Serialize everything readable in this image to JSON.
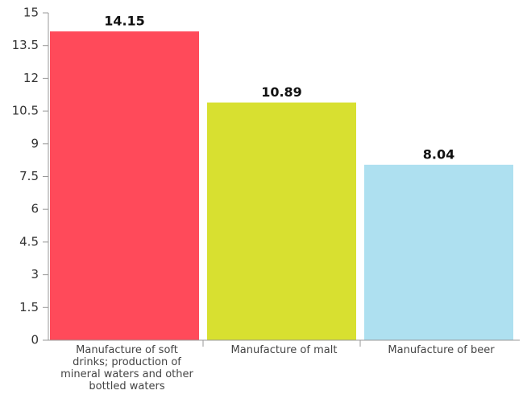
{
  "chart_data": {
    "type": "bar",
    "categories": [
      "Manufacture of soft drinks; production of mineral waters and other bottled waters",
      "Manufacture of malt",
      "Manufacture of beer"
    ],
    "values": [
      14.15,
      10.89,
      8.04
    ],
    "colors": [
      "#ff4a5a",
      "#d8e030",
      "#aee0f0"
    ],
    "ylim": [
      0,
      15
    ],
    "yticks": [
      0,
      1.5,
      3,
      4.5,
      6,
      7.5,
      9,
      10.5,
      12,
      13.5,
      15
    ],
    "grid": false
  }
}
